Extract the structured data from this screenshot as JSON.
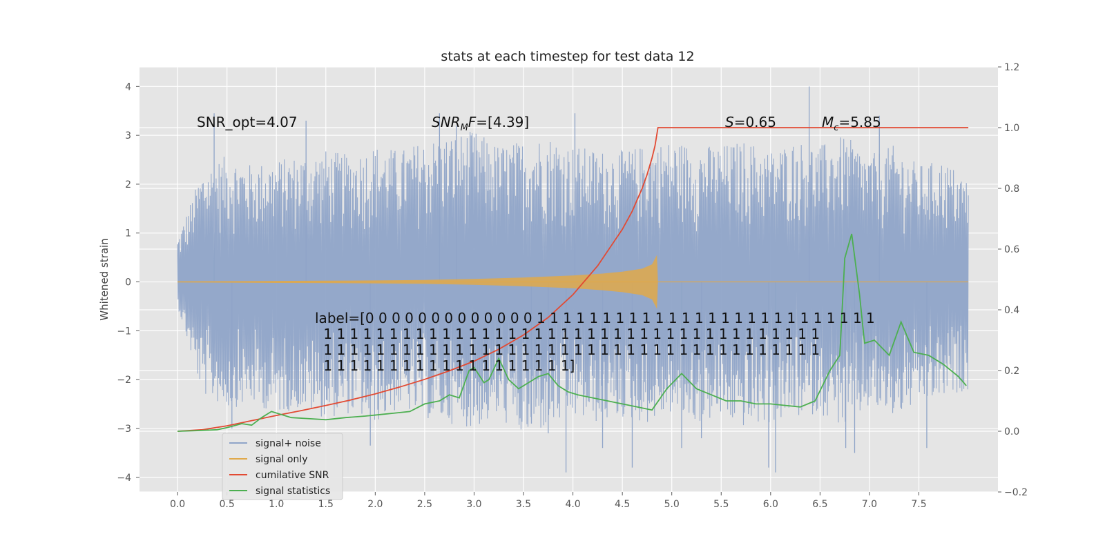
{
  "chart_data": {
    "type": "line",
    "title": "stats at each timestep for test data 12",
    "ylabel": "Whitened strain",
    "xlabel": "",
    "xlim": [
      -0.385,
      8.3
    ],
    "ylim": [
      -4.3,
      4.4
    ],
    "y2lim": [
      -0.2,
      1.2
    ],
    "grid": true,
    "x_ticks": [
      0.0,
      0.5,
      1.0,
      1.5,
      2.0,
      2.5,
      3.0,
      3.5,
      4.0,
      4.5,
      5.0,
      5.5,
      6.0,
      6.5,
      7.0,
      7.5
    ],
    "x_tick_labels": [
      "0.0",
      "0.5",
      "1.0",
      "1.5",
      "2.0",
      "2.5",
      "3.0",
      "3.5",
      "4.0",
      "4.5",
      "5.0",
      "5.5",
      "6.0",
      "6.5",
      "7.0",
      "7.5"
    ],
    "y_ticks": [
      4,
      3,
      2,
      1,
      0,
      -1,
      -2,
      -3,
      -4
    ],
    "y_tick_labels": [
      "4",
      "3",
      "2",
      "1",
      "0",
      "−1",
      "−2",
      "−3",
      "−4"
    ],
    "y2_ticks": [
      1.2,
      1.0,
      0.8,
      0.6,
      0.4,
      0.2,
      0.0,
      -0.2
    ],
    "y2_tick_labels": [
      "1.2",
      "1.0",
      "0.8",
      "0.6",
      "0.4",
      "0.2",
      "0.0",
      "−0.2"
    ],
    "series": [
      {
        "name": "signal+ noise",
        "color": "#8fa4c8",
        "axis": "left",
        "description": "whitened strain noise envelope",
        "x": [
          0.0,
          0.25,
          0.5,
          0.75,
          1.0,
          1.25,
          1.5,
          1.75,
          2.0,
          2.25,
          2.5,
          2.75,
          3.0,
          3.25,
          3.5,
          3.75,
          4.0,
          4.25,
          4.5,
          4.75,
          5.0,
          5.25,
          5.5,
          5.75,
          6.0,
          6.25,
          6.5,
          6.75,
          7.0,
          7.25,
          7.5,
          7.75,
          8.0
        ],
        "upper": [
          0.9,
          2.3,
          2.6,
          2.4,
          2.5,
          2.6,
          2.7,
          2.6,
          2.8,
          2.7,
          2.9,
          3.0,
          3.1,
          2.8,
          2.9,
          3.0,
          2.8,
          2.7,
          2.7,
          2.8,
          2.9,
          2.8,
          2.8,
          2.9,
          2.7,
          2.9,
          2.8,
          3.0,
          2.6,
          2.8,
          2.4,
          2.5,
          2.1
        ],
        "lower": [
          -0.5,
          -2.3,
          -2.6,
          -2.5,
          -2.7,
          -2.6,
          -2.8,
          -2.7,
          -2.9,
          -2.6,
          -2.8,
          -2.9,
          -3.0,
          -2.8,
          -3.2,
          -3.0,
          -2.8,
          -2.9,
          -2.8,
          -2.9,
          -2.7,
          -2.9,
          -2.8,
          -3.0,
          -2.9,
          -2.8,
          -2.7,
          -3.0,
          -2.6,
          -2.8,
          -2.5,
          -2.4,
          -2.2
        ],
        "spikes": [
          [
            0.37,
            3.45
          ],
          [
            0.55,
            -3.0
          ],
          [
            1.3,
            3.3
          ],
          [
            1.95,
            -3.35
          ],
          [
            2.65,
            3.45
          ],
          [
            2.82,
            3.2
          ],
          [
            3.58,
            -2.9
          ],
          [
            3.75,
            -3.1
          ],
          [
            3.93,
            -3.9
          ],
          [
            4.02,
            3.45
          ],
          [
            4.3,
            -3.4
          ],
          [
            4.6,
            -3.8
          ],
          [
            5.1,
            -3.4
          ],
          [
            5.3,
            -3.2
          ],
          [
            5.98,
            -3.8
          ],
          [
            6.05,
            -3.9
          ],
          [
            6.39,
            4.0
          ],
          [
            6.76,
            -3.4
          ],
          [
            6.85,
            -3.5
          ],
          [
            7.1,
            3.4
          ],
          [
            7.58,
            -3.4
          ]
        ]
      },
      {
        "name": "signal only",
        "color": "#e0a94a",
        "axis": "left",
        "description": "chirp envelope amplitude",
        "x": [
          0.0,
          0.5,
          1.0,
          1.5,
          2.0,
          2.5,
          3.0,
          3.5,
          4.0,
          4.3,
          4.5,
          4.7,
          4.8,
          4.85,
          4.86,
          8.0
        ],
        "amplitude": [
          0.01,
          0.015,
          0.02,
          0.025,
          0.03,
          0.04,
          0.06,
          0.09,
          0.13,
          0.17,
          0.21,
          0.27,
          0.36,
          0.55,
          0.0,
          0.0
        ]
      },
      {
        "name": "cumilative SNR",
        "color": "#e24a33",
        "axis": "right",
        "x": [
          0.0,
          0.25,
          0.5,
          0.75,
          1.0,
          1.25,
          1.5,
          1.75,
          2.0,
          2.25,
          2.5,
          2.75,
          3.0,
          3.25,
          3.5,
          3.75,
          4.0,
          4.25,
          4.5,
          4.6,
          4.7,
          4.75,
          4.8,
          4.83,
          4.86,
          5.0,
          8.0
        ],
        "values": [
          0.0,
          0.005,
          0.018,
          0.035,
          0.052,
          0.068,
          0.085,
          0.103,
          0.123,
          0.146,
          0.171,
          0.199,
          0.231,
          0.27,
          0.317,
          0.375,
          0.45,
          0.545,
          0.665,
          0.725,
          0.8,
          0.845,
          0.9,
          0.94,
          1.0,
          1.0,
          1.0
        ]
      },
      {
        "name": "signal statistics",
        "color": "#4caf50",
        "axis": "right",
        "x": [
          0.0,
          0.2,
          0.4,
          0.5,
          0.65,
          0.75,
          0.85,
          0.95,
          1.05,
          1.15,
          1.3,
          1.5,
          1.7,
          1.9,
          2.05,
          2.2,
          2.35,
          2.5,
          2.65,
          2.75,
          2.85,
          2.95,
          3.0,
          3.1,
          3.15,
          3.25,
          3.35,
          3.45,
          3.55,
          3.65,
          3.75,
          3.85,
          3.95,
          4.05,
          4.2,
          4.35,
          4.5,
          4.65,
          4.8,
          4.95,
          5.1,
          5.25,
          5.4,
          5.55,
          5.7,
          5.85,
          6.0,
          6.15,
          6.3,
          6.45,
          6.6,
          6.7,
          6.75,
          6.82,
          6.9,
          6.95,
          7.05,
          7.2,
          7.32,
          7.45,
          7.6,
          7.75,
          7.9,
          7.98
        ],
        "values": [
          0.0,
          0.002,
          0.005,
          0.012,
          0.025,
          0.02,
          0.045,
          0.065,
          0.055,
          0.045,
          0.042,
          0.038,
          0.045,
          0.05,
          0.055,
          0.06,
          0.065,
          0.09,
          0.1,
          0.12,
          0.11,
          0.2,
          0.21,
          0.16,
          0.17,
          0.24,
          0.17,
          0.14,
          0.16,
          0.18,
          0.19,
          0.15,
          0.13,
          0.12,
          0.11,
          0.1,
          0.09,
          0.08,
          0.07,
          0.14,
          0.19,
          0.14,
          0.12,
          0.1,
          0.1,
          0.09,
          0.09,
          0.085,
          0.08,
          0.1,
          0.2,
          0.25,
          0.57,
          0.65,
          0.45,
          0.29,
          0.3,
          0.25,
          0.36,
          0.26,
          0.25,
          0.22,
          0.18,
          0.15
        ]
      }
    ],
    "annotations": [
      {
        "label": "SNR_opt",
        "text": "SNR_opt=4.07"
      },
      {
        "label": "SNR_MF",
        "text": "SNR",
        "sub": "M",
        "tail": "F=[4.39]"
      },
      {
        "label": "S",
        "text": "S",
        "tail": "=0.65"
      },
      {
        "label": "Mc",
        "text": "M",
        "sub": "c",
        "tail": "=5.85"
      }
    ],
    "label_text": [
      "label=[0 0 0 0 0 0 0 0 0 0 0 0 0 1 1 1 1 1 1 1 1 1 1 1 1 1 1 1 1 1 1 1 1 1 1 1 1 1 1",
      " 1 1 1 1 1 1 1 1 1 1 1 1 1 1 1 1 1 1 1 1 1 1 1 1 1 1 1 1 1 1 1 1 1 1 1 1 1 1",
      " 1 1 1 1 1 1 1 1 1 1 1 1 1 1 1 1 1 1 1 1 1 1 1 1 1 1 1 1 1 1 1 1 1 1 1 1 1 1",
      " 1 1 1 1 1 1 1 1 1 1 1 1 1 1 1 1 1 1 1]"
    ],
    "legend": {
      "position": "lower-left",
      "entries": [
        {
          "label": "signal+ noise",
          "color": "#8fa4c8"
        },
        {
          "label": "signal only",
          "color": "#e0a94a"
        },
        {
          "label": "cumilative SNR",
          "color": "#e24a33"
        },
        {
          "label": "signal statistics",
          "color": "#4caf50"
        }
      ]
    }
  }
}
